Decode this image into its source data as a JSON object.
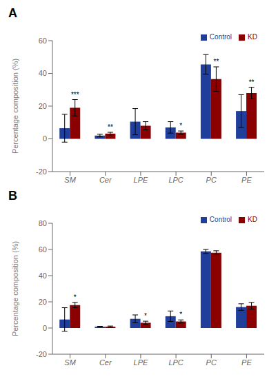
{
  "chart_data": [
    {
      "type": "bar",
      "title": "A",
      "ylabel": "Percentage composition (%)",
      "categories": [
        "SM",
        "Cer",
        "LPE",
        "LPC",
        "PC",
        "PE"
      ],
      "series": [
        {
          "name": "Control",
          "color": "#1F3F9A",
          "values": [
            6.5,
            2.0,
            10.5,
            7.0,
            45.5,
            17.0
          ],
          "errors": [
            8.5,
            0.8,
            8.0,
            3.5,
            6.0,
            10.0
          ]
        },
        {
          "name": "KD",
          "color": "#8B0000",
          "values": [
            19.0,
            3.2,
            8.0,
            3.8,
            36.5,
            28.0
          ],
          "errors": [
            5.0,
            0.8,
            2.5,
            1.0,
            7.5,
            3.5
          ],
          "significance": [
            "***",
            "**",
            null,
            "*",
            "**",
            "**"
          ]
        }
      ],
      "ylim": [
        -20,
        60
      ],
      "yticks": [
        -20,
        0,
        20,
        40,
        60
      ],
      "legend": "upper right",
      "grid": false
    },
    {
      "type": "bar",
      "title": "B",
      "ylabel": "Percentage composition (%)",
      "categories": [
        "SM",
        "Cer",
        "LPE",
        "LPC",
        "PC",
        "PE"
      ],
      "series": [
        {
          "name": "Control",
          "color": "#1F3F9A",
          "values": [
            6.5,
            1.0,
            7.0,
            9.0,
            58.5,
            16.0
          ],
          "errors": [
            9.0,
            0.3,
            3.0,
            4.0,
            1.5,
            2.5
          ]
        },
        {
          "name": "KD",
          "color": "#8B0000",
          "values": [
            17.5,
            1.0,
            4.0,
            5.0,
            57.5,
            17.0
          ],
          "errors": [
            2.0,
            0.5,
            1.2,
            1.2,
            1.5,
            2.5
          ],
          "significance": [
            "*",
            null,
            "*",
            "*",
            null,
            null
          ]
        }
      ],
      "ylim": [
        -20,
        80
      ],
      "yticks": [
        -20,
        0,
        20,
        40,
        60,
        80
      ],
      "legend": "upper right",
      "grid": false
    }
  ]
}
